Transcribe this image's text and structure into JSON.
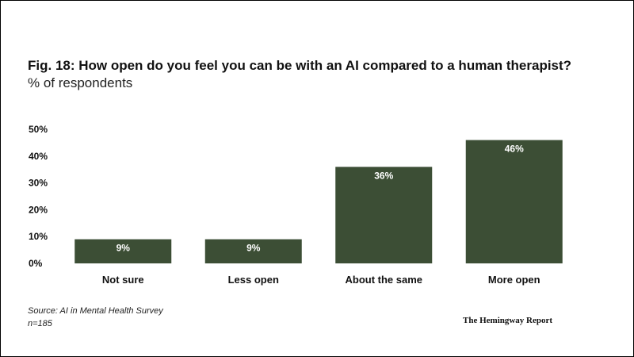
{
  "colors": {
    "bar": "#3c4e35",
    "bar_label": "#ffffff",
    "text": "#111111"
  },
  "chart_data": {
    "type": "bar",
    "title": "Fig. 18: How open do you feel you can be with an AI compared to a human therapist?",
    "subtitle": "% of respondents",
    "categories": [
      "Not sure",
      "Less open",
      "About the same",
      "More open"
    ],
    "values": [
      9,
      9,
      36,
      46
    ],
    "data_labels": [
      "9%",
      "9%",
      "36%",
      "46%"
    ],
    "yticks": [
      "0%",
      "10%",
      "20%",
      "30%",
      "40%",
      "50%"
    ],
    "ytick_values": [
      0,
      10,
      20,
      30,
      40,
      50
    ],
    "ylim": [
      0,
      50
    ],
    "xlabel": "",
    "ylabel": "",
    "grid": false,
    "legend": "none"
  },
  "footer": {
    "source": "Source: AI in Mental Health Survey",
    "sample": "n=185",
    "brand": "The Hemingway Report"
  }
}
